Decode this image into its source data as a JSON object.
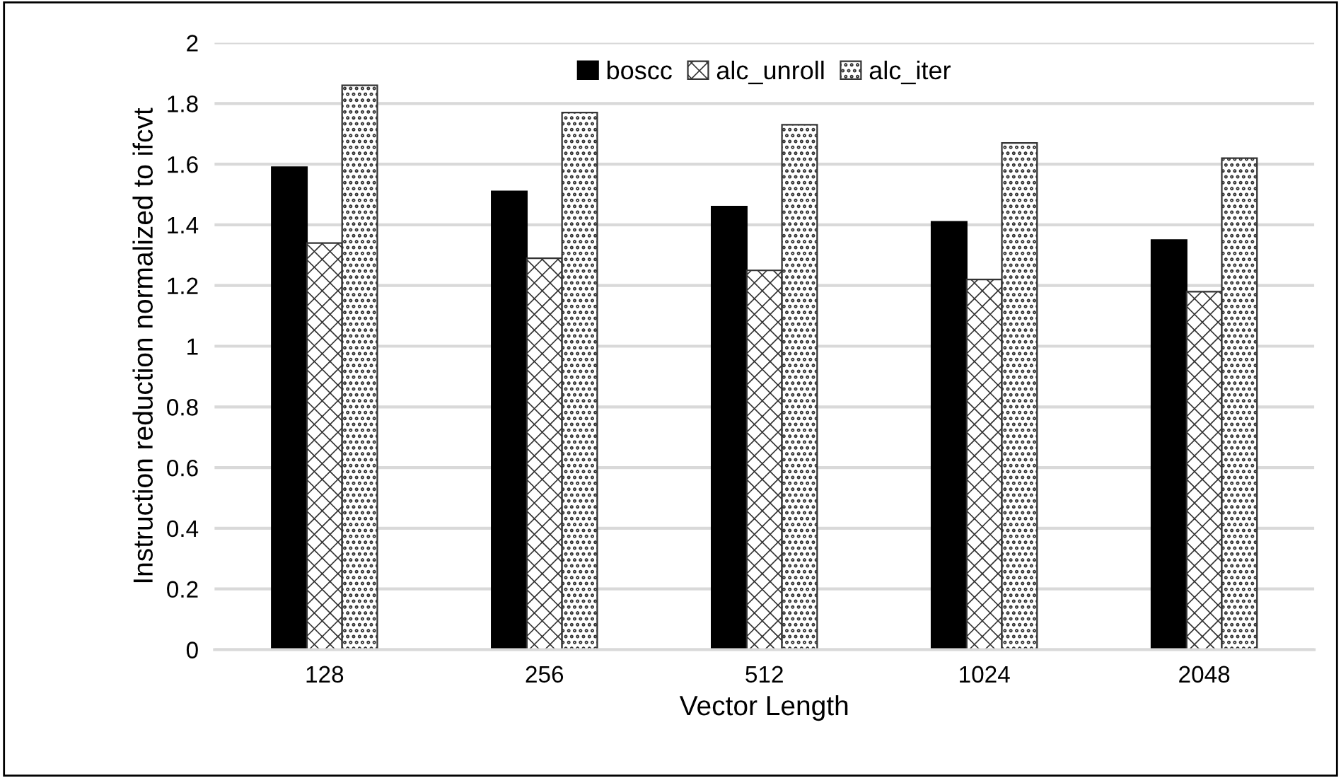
{
  "chart_data": {
    "type": "bar",
    "xlabel": "Vector Length",
    "ylabel": "Instruction reduction normalized to ifcvt",
    "categories": [
      "128",
      "256",
      "512",
      "1024",
      "2048"
    ],
    "series": [
      {
        "name": "boscc",
        "color": "#000000",
        "values": [
          1.59,
          1.51,
          1.46,
          1.41,
          1.35
        ]
      },
      {
        "name": "alc_unroll",
        "color": "#333333",
        "values": [
          1.34,
          1.29,
          1.25,
          1.22,
          1.18
        ]
      },
      {
        "name": "alc_iter",
        "color": "#333333",
        "values": [
          1.86,
          1.77,
          1.73,
          1.67,
          1.62
        ]
      }
    ],
    "ylim": [
      0,
      2
    ],
    "yticks": [
      0,
      0.2,
      0.4,
      0.6,
      0.8,
      1,
      1.2,
      1.4,
      1.6,
      1.8,
      2
    ],
    "grid": "y",
    "legend": "top"
  }
}
